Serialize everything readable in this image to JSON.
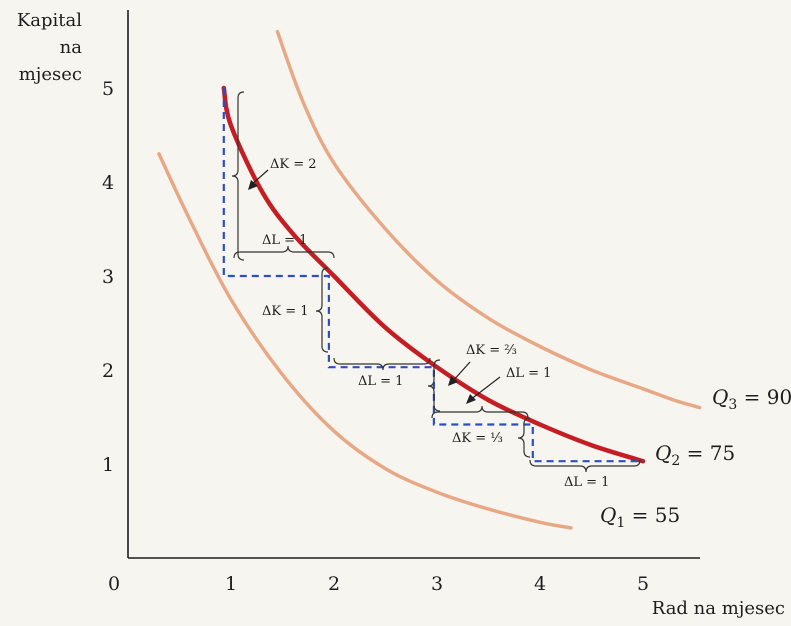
{
  "chart_data": {
    "type": "line",
    "title": "",
    "xlabel": "Rad na mjesec",
    "ylabel_lines": [
      "Kapital",
      "na",
      "mjesec"
    ],
    "xlim": [
      0,
      5.5
    ],
    "ylim": [
      0,
      5.6
    ],
    "x_ticks": [
      1,
      2,
      3,
      4,
      5
    ],
    "y_ticks": [
      1,
      2,
      3,
      4,
      5
    ],
    "origin_label": "0",
    "grid": false,
    "series": [
      {
        "name": "Q1 = 55",
        "label_main": "Q",
        "label_sub": "1",
        "label_rest": " = 55",
        "color": "#e6a07a",
        "width": 3.5,
        "x": [
          0.3,
          0.6,
          1.0,
          1.5,
          2.0,
          2.5,
          3.0,
          3.5,
          4.0,
          4.3
        ],
        "y": [
          4.3,
          3.6,
          2.75,
          1.95,
          1.35,
          0.95,
          0.7,
          0.52,
          0.38,
          0.32
        ]
      },
      {
        "name": "Q2 = 75",
        "label_main": "Q",
        "label_sub": "2",
        "label_rest": " = 75",
        "color": "#c41e24",
        "width": 4.5,
        "x": [
          0.93,
          1.0,
          1.3,
          1.6,
          2.0,
          2.5,
          3.0,
          3.5,
          4.0,
          4.5,
          5.0
        ],
        "y": [
          5.0,
          4.6,
          3.9,
          3.45,
          3.0,
          2.45,
          2.03,
          1.68,
          1.42,
          1.2,
          1.03
        ]
      },
      {
        "name": "Q3 = 90",
        "label_main": "Q",
        "label_sub": "3",
        "label_rest": " = 90",
        "color": "#e6a07a",
        "width": 3.5,
        "x": [
          1.45,
          1.7,
          2.0,
          2.5,
          3.0,
          3.5,
          4.0,
          4.5,
          5.0,
          5.3,
          5.55
        ],
        "y": [
          5.6,
          4.85,
          4.2,
          3.5,
          2.95,
          2.55,
          2.25,
          2.0,
          1.8,
          1.68,
          1.6
        ]
      }
    ],
    "steps": {
      "color": "#2f4ec2",
      "x": [
        0.93,
        0.93,
        1.95,
        1.95,
        2.97,
        2.97,
        3.93,
        3.93,
        5.0
      ],
      "y": [
        5.0,
        3.0,
        3.0,
        2.03,
        2.03,
        1.42,
        1.42,
        1.03,
        1.03
      ]
    },
    "annotations": [
      {
        "text": "ΔK = 2"
      },
      {
        "text": "ΔL = 1"
      },
      {
        "text": "ΔK = 1"
      },
      {
        "text": "ΔL = 1"
      },
      {
        "text": "ΔK = ²⁄₃"
      },
      {
        "text": "ΔL = 1"
      },
      {
        "text": "ΔK = ¹⁄₃"
      },
      {
        "text": "ΔL = 1"
      }
    ]
  }
}
